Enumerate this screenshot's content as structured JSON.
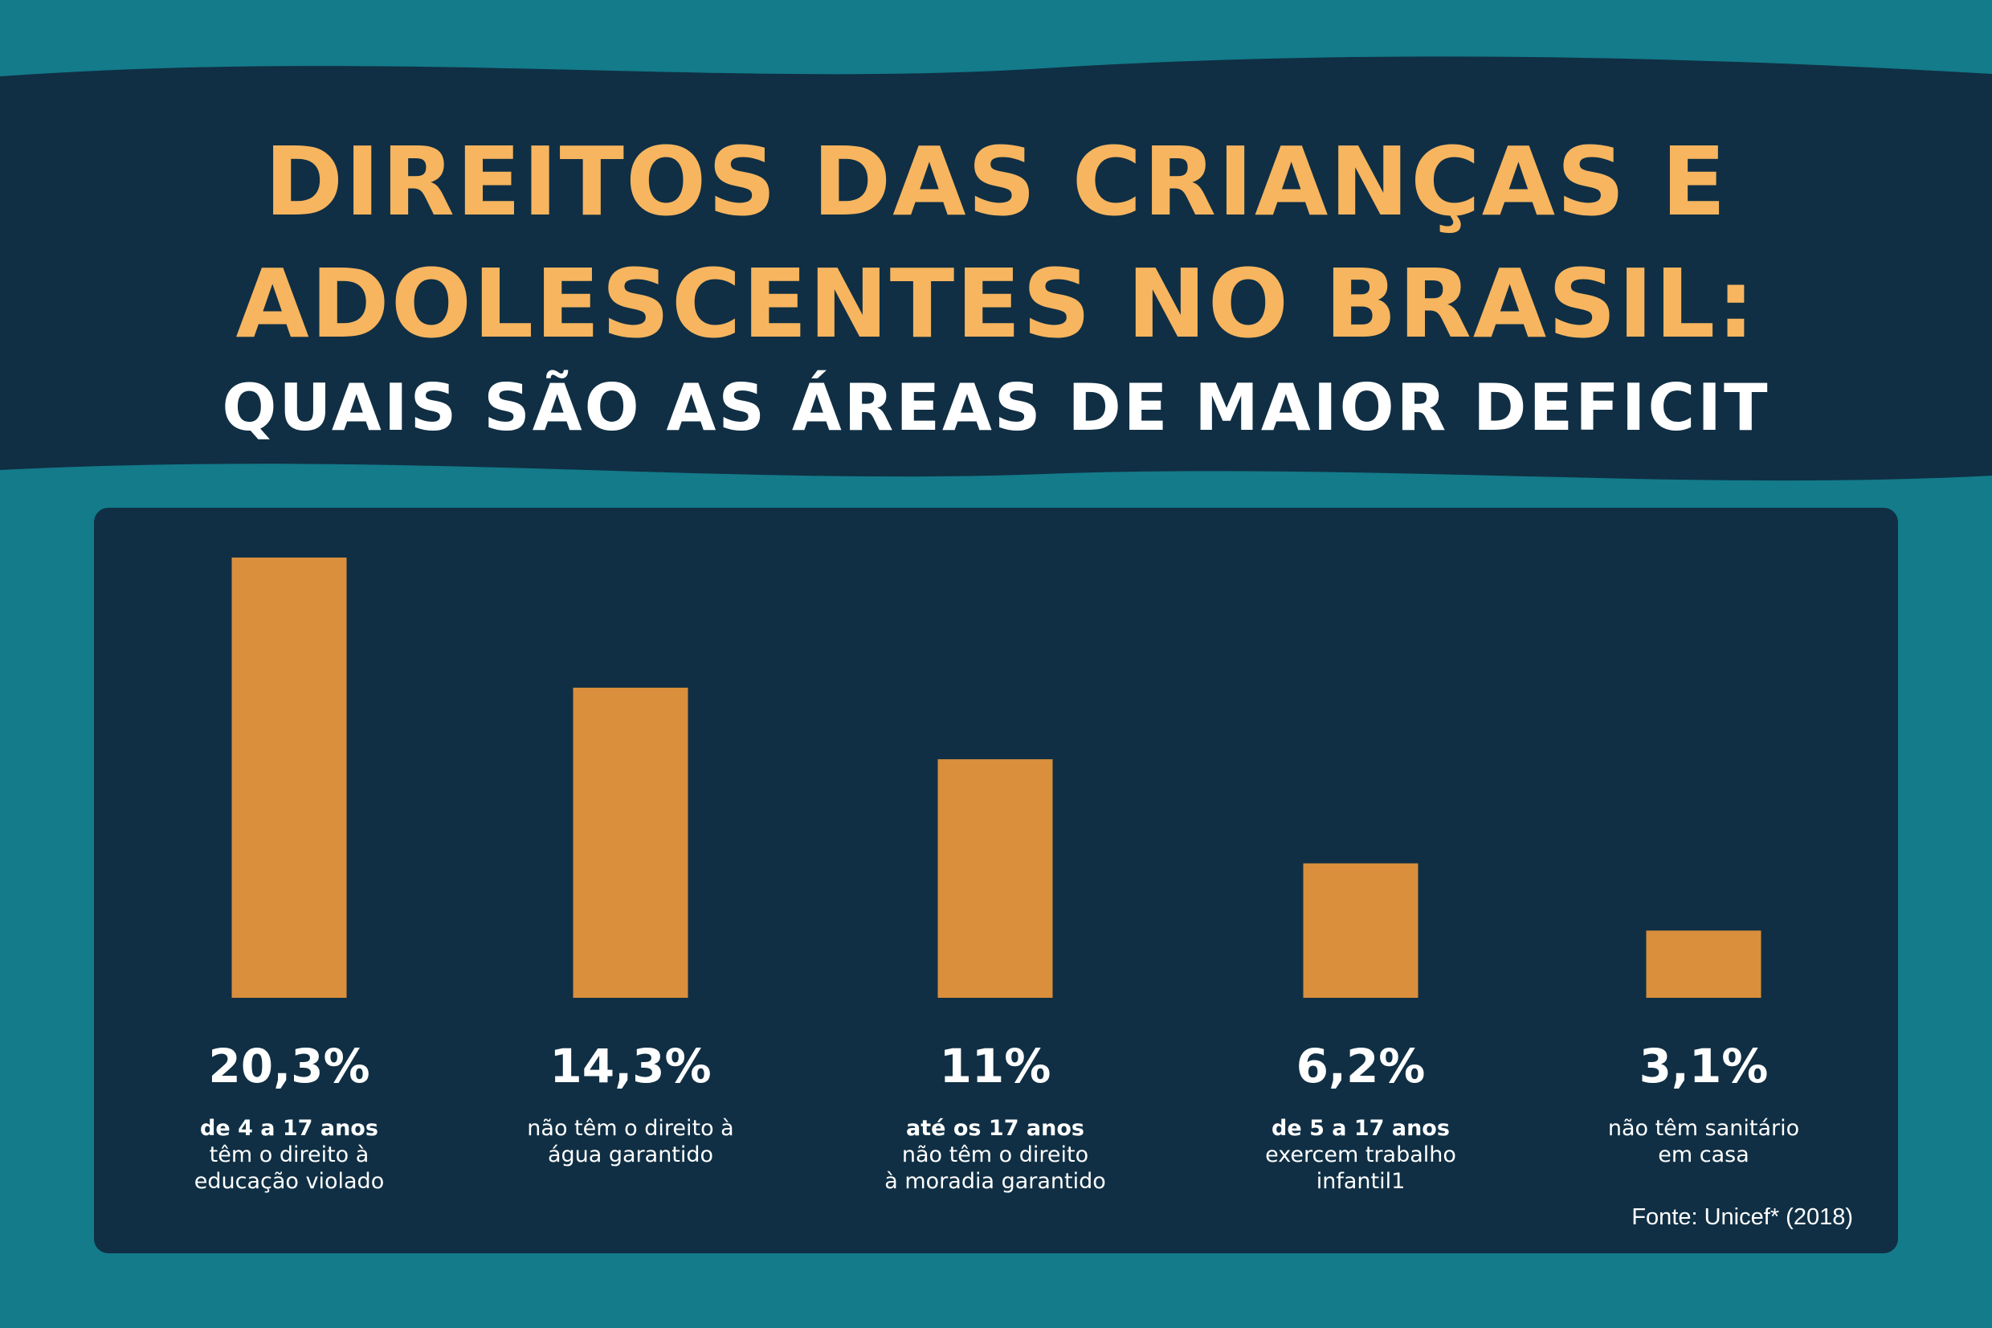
{
  "title": {
    "line1": "DIREITOS DAS CRIANÇAS E",
    "line2": "ADOLESCENTES NO BRASIL:",
    "subtitle": "QUAIS SÃO AS ÁREAS DE MAIOR DEFICIT"
  },
  "colors": {
    "background": "#137b8a",
    "band": "#102f44",
    "panel": "#102f44",
    "bar": "#d98f3b",
    "title": "#f7b55f",
    "text": "#ffffff"
  },
  "chart_data": {
    "type": "bar",
    "categories": [
      "20,3%",
      "14,3%",
      "11%",
      "6,2%",
      "3,1%"
    ],
    "values": [
      20.3,
      14.3,
      11,
      6.2,
      3.1
    ],
    "value_labels": [
      "20,3%",
      "14,3%",
      "11%",
      "6,2%",
      "3,1%"
    ],
    "descriptions": [
      {
        "bold": "de 4 a 17 anos",
        "lines": [
          "têm o direito à",
          "educação violado"
        ]
      },
      {
        "bold": "",
        "lines": [
          "não têm o direito à",
          "água garantido"
        ]
      },
      {
        "bold": "até os 17 anos",
        "lines": [
          "não têm o direito",
          "à moradia garantido"
        ]
      },
      {
        "bold": "de 5 a 17 anos",
        "lines": [
          "exercem trabalho",
          "infantil1"
        ]
      },
      {
        "bold": "",
        "lines": [
          "não têm sanitário",
          "em casa"
        ]
      }
    ],
    "ylim": [
      0,
      20.3
    ],
    "grid": false,
    "xlabel": "",
    "ylabel": ""
  },
  "source": "Fonte: Unicef* (2018)"
}
